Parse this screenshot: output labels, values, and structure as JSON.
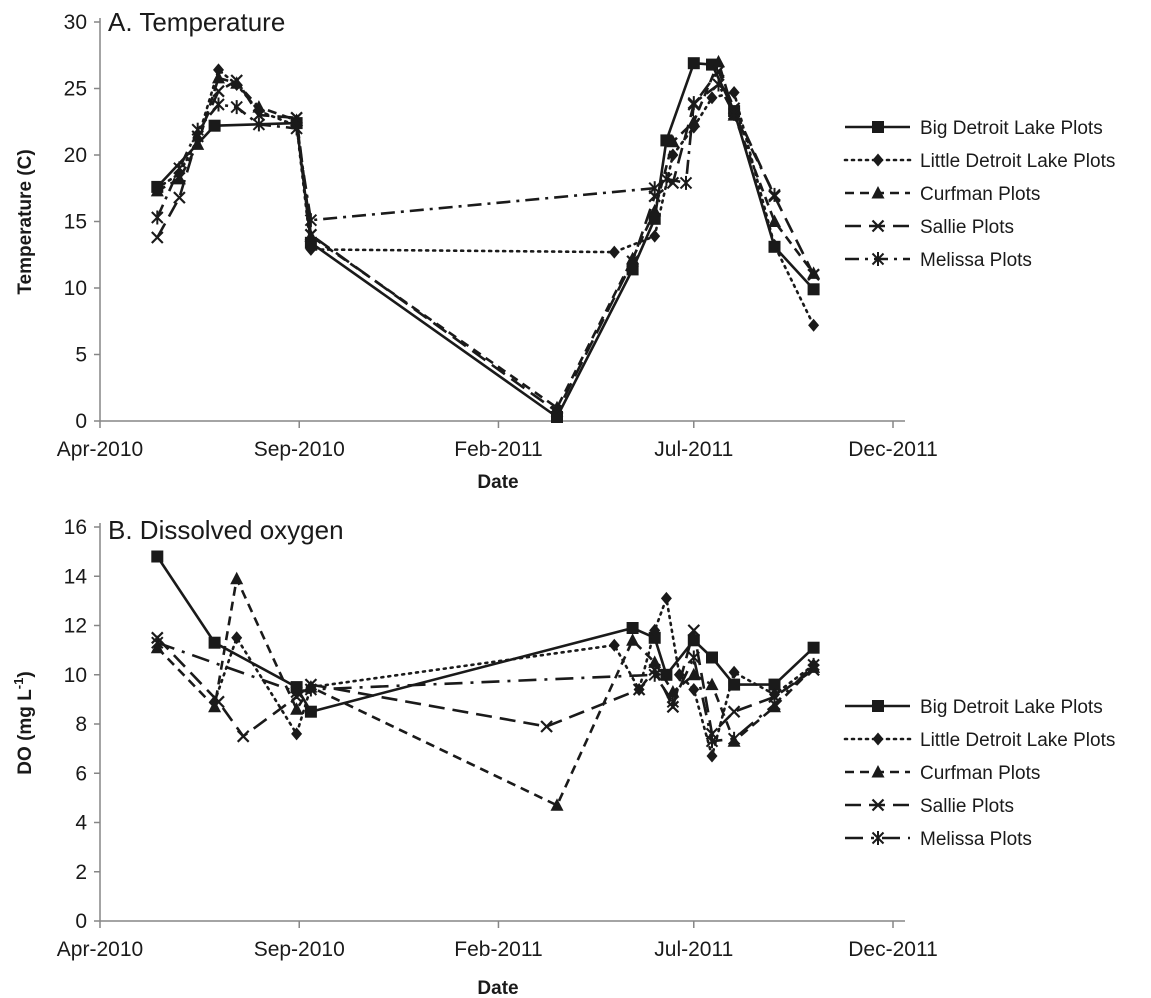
{
  "chart_data": [
    {
      "type": "line",
      "title": "A.  Temperature",
      "xlabel": "Date",
      "ylabel": "Temperature (C)",
      "ylim": [
        0,
        30
      ],
      "yticks": [
        "0",
        "5",
        "10",
        "15",
        "20",
        "25",
        "30"
      ],
      "xlim": [
        "2010-04-01",
        "2011-12-01"
      ],
      "xticks": [
        {
          "date": "2010-04-01",
          "label": "Apr-2010"
        },
        {
          "date": "2010-09-01",
          "label": "Sep-2010"
        },
        {
          "date": "2011-02-01",
          "label": "Feb-2011"
        },
        {
          "date": "2011-07-01",
          "label": "Jul-2011"
        },
        {
          "date": "2011-12-01",
          "label": "Dec-2011"
        }
      ],
      "grid": false,
      "legend_position": "right",
      "series": [
        {
          "name": "Big Detroit Lake Plots",
          "marker": "square",
          "dash": "solid",
          "points": [
            [
              "2010-05-15",
              17.6
            ],
            [
              "2010-06-28",
              22.2
            ],
            [
              "2010-08-30",
              22.4
            ],
            [
              "2010-09-10",
              13.4
            ],
            [
              "2011-03-18",
              0.3
            ],
            [
              "2011-05-15",
              11.4
            ],
            [
              "2011-06-01",
              15.2
            ],
            [
              "2011-06-10",
              21.1
            ],
            [
              "2011-07-01",
              26.9
            ],
            [
              "2011-07-15",
              26.8
            ],
            [
              "2011-08-01",
              23.3
            ],
            [
              "2011-09-01",
              13.1
            ],
            [
              "2011-10-01",
              9.9
            ]
          ]
        },
        {
          "name": "Little Detroit Lake Plots",
          "marker": "diamond",
          "dash": "dotted",
          "points": [
            [
              "2010-05-15",
              17.5
            ],
            [
              "2010-06-01",
              18.6
            ],
            [
              "2010-06-15",
              21.2
            ],
            [
              "2010-07-01",
              26.4
            ],
            [
              "2010-07-15",
              25.3
            ],
            [
              "2010-08-01",
              23.3
            ],
            [
              "2010-08-30",
              22.2
            ],
            [
              "2010-09-10",
              12.9
            ],
            [
              "2011-05-01",
              12.7
            ],
            [
              "2011-06-01",
              13.9
            ],
            [
              "2011-06-15",
              20.0
            ],
            [
              "2011-07-01",
              22.1
            ],
            [
              "2011-07-15",
              24.3
            ],
            [
              "2011-08-01",
              24.7
            ],
            [
              "2011-09-01",
              13.2
            ],
            [
              "2011-10-01",
              7.2
            ]
          ]
        },
        {
          "name": "Curfman Plots",
          "marker": "triangle",
          "dash": "dashed",
          "points": [
            [
              "2010-05-15",
              17.3
            ],
            [
              "2010-06-01",
              18.2
            ],
            [
              "2010-06-15",
              20.8
            ],
            [
              "2010-07-01",
              25.8
            ],
            [
              "2010-07-15",
              25.4
            ],
            [
              "2010-08-01",
              23.6
            ],
            [
              "2010-08-30",
              22.6
            ],
            [
              "2010-09-10",
              13.9
            ],
            [
              "2011-03-18",
              1.0
            ],
            [
              "2011-05-15",
              12.2
            ],
            [
              "2011-06-01",
              15.8
            ],
            [
              "2011-06-15",
              21.0
            ],
            [
              "2011-07-01",
              22.5
            ],
            [
              "2011-07-20",
              27.0
            ],
            [
              "2011-08-01",
              23.0
            ],
            [
              "2011-09-01",
              15.0
            ],
            [
              "2011-10-01",
              11.1
            ]
          ]
        },
        {
          "name": "Sallie Plots",
          "marker": "x",
          "dash": "longdash",
          "points": [
            [
              "2010-05-15",
              13.8
            ],
            [
              "2010-06-01",
              16.8
            ],
            [
              "2010-06-15",
              21.4
            ],
            [
              "2010-07-01",
              24.8
            ],
            [
              "2010-07-15",
              25.6
            ],
            [
              "2010-08-01",
              23.0
            ],
            [
              "2010-08-30",
              22.8
            ],
            [
              "2010-09-10",
              14.0
            ],
            [
              "2011-03-18",
              0.7
            ],
            [
              "2011-05-15",
              12.0
            ],
            [
              "2011-06-01",
              16.9
            ],
            [
              "2011-06-15",
              17.9
            ],
            [
              "2011-07-01",
              23.8
            ],
            [
              "2011-07-20",
              26.3
            ],
            [
              "2011-08-01",
              23.5
            ],
            [
              "2011-09-01",
              16.9
            ],
            [
              "2011-10-01",
              11.0
            ]
          ]
        },
        {
          "name": "Melissa Plots",
          "marker": "asterisk",
          "dash": "dashdot",
          "points": [
            [
              "2010-05-15",
              15.3
            ],
            [
              "2010-06-01",
              19.0
            ],
            [
              "2010-06-15",
              21.9
            ],
            [
              "2010-07-01",
              23.8
            ],
            [
              "2010-07-15",
              23.6
            ],
            [
              "2010-08-01",
              22.3
            ],
            [
              "2010-08-30",
              22.0
            ],
            [
              "2010-09-10",
              15.1
            ],
            [
              "2011-06-01",
              17.5
            ],
            [
              "2011-06-10",
              18.2
            ],
            [
              "2011-06-25",
              17.9
            ],
            [
              "2011-07-01",
              23.9
            ],
            [
              "2011-07-20",
              25.3
            ],
            [
              "2011-08-01",
              23.1
            ],
            [
              "2011-09-01",
              17.0
            ]
          ]
        }
      ]
    },
    {
      "type": "line",
      "title": "B.  Dissolved oxygen",
      "xlabel": "Date",
      "ylabel_main": "DO (mg L",
      "ylabel_sup": "-1",
      "ylabel_close": ")",
      "ylim": [
        0,
        16
      ],
      "yticks": [
        "0",
        "2",
        "4",
        "6",
        "8",
        "10",
        "12",
        "14",
        "16"
      ],
      "xlim": [
        "2010-04-01",
        "2011-12-01"
      ],
      "xticks": [
        {
          "date": "2010-04-01",
          "label": "Apr-2010"
        },
        {
          "date": "2010-09-01",
          "label": "Sep-2010"
        },
        {
          "date": "2011-02-01",
          "label": "Feb-2011"
        },
        {
          "date": "2011-07-01",
          "label": "Jul-2011"
        },
        {
          "date": "2011-12-01",
          "label": "Dec-2011"
        }
      ],
      "grid": false,
      "legend_position": "right",
      "series": [
        {
          "name": "Big Detroit Lake Plots",
          "marker": "square",
          "dash": "solid",
          "points": [
            [
              "2010-05-15",
              14.8
            ],
            [
              "2010-06-28",
              11.3
            ],
            [
              "2010-08-30",
              9.5
            ],
            [
              "2010-09-10",
              8.5
            ],
            [
              "2011-05-15",
              11.9
            ],
            [
              "2011-06-01",
              11.5
            ],
            [
              "2011-06-10",
              10.0
            ],
            [
              "2011-07-01",
              11.4
            ],
            [
              "2011-07-15",
              10.7
            ],
            [
              "2011-08-01",
              9.6
            ],
            [
              "2011-09-01",
              9.6
            ],
            [
              "2011-10-01",
              11.1
            ]
          ]
        },
        {
          "name": "Little Detroit Lake Plots",
          "marker": "diamond",
          "dash": "dotted",
          "points": [
            [
              "2010-06-28",
              8.9
            ],
            [
              "2010-07-15",
              11.5
            ],
            [
              "2010-08-30",
              7.6
            ],
            [
              "2010-09-10",
              9.5
            ],
            [
              "2011-05-01",
              11.2
            ],
            [
              "2011-05-20",
              9.4
            ],
            [
              "2011-06-01",
              11.8
            ],
            [
              "2011-06-10",
              13.1
            ],
            [
              "2011-06-20",
              10.0
            ],
            [
              "2011-07-01",
              9.4
            ],
            [
              "2011-07-15",
              6.7
            ],
            [
              "2011-08-01",
              10.1
            ],
            [
              "2011-09-01",
              9.2
            ],
            [
              "2011-10-01",
              10.4
            ]
          ]
        },
        {
          "name": "Curfman Plots",
          "marker": "triangle",
          "dash": "dashed",
          "points": [
            [
              "2010-05-15",
              11.1
            ],
            [
              "2010-06-28",
              8.7
            ],
            [
              "2010-07-15",
              13.9
            ],
            [
              "2010-08-30",
              8.6
            ],
            [
              "2010-09-10",
              9.5
            ],
            [
              "2011-03-18",
              4.7
            ],
            [
              "2011-05-15",
              11.4
            ],
            [
              "2011-06-01",
              10.5
            ],
            [
              "2011-06-15",
              9.3
            ],
            [
              "2011-07-01",
              10.0
            ],
            [
              "2011-07-15",
              9.6
            ],
            [
              "2011-08-01",
              7.3
            ],
            [
              "2011-09-01",
              8.7
            ],
            [
              "2011-10-01",
              10.3
            ]
          ]
        },
        {
          "name": "Sallie Plots",
          "marker": "x",
          "dash": "longdash",
          "points": [
            [
              "2010-05-15",
              11.5
            ],
            [
              "2010-07-01",
              8.9
            ],
            [
              "2010-07-20",
              7.5
            ],
            [
              "2010-08-30",
              9.1
            ],
            [
              "2010-09-10",
              9.6
            ],
            [
              "2011-03-10",
              7.9
            ],
            [
              "2011-05-20",
              9.4
            ],
            [
              "2011-06-01",
              10.2
            ],
            [
              "2011-06-15",
              8.7
            ],
            [
              "2011-07-01",
              11.8
            ],
            [
              "2011-07-15",
              7.6
            ],
            [
              "2011-08-01",
              8.5
            ],
            [
              "2011-09-01",
              9.1
            ],
            [
              "2011-10-01",
              10.2
            ]
          ]
        },
        {
          "name": "Melissa Plots",
          "marker": "asterisk",
          "dash": "longdashdot",
          "points": [
            [
              "2010-05-15",
              11.3
            ],
            [
              "2010-08-30",
              9.3
            ],
            [
              "2010-09-10",
              9.4
            ],
            [
              "2011-06-01",
              10.0
            ],
            [
              "2011-06-15",
              8.9
            ],
            [
              "2011-07-01",
              10.7
            ],
            [
              "2011-07-15",
              7.3
            ],
            [
              "2011-08-01",
              7.4
            ],
            [
              "2011-09-01",
              8.8
            ],
            [
              "2011-10-01",
              10.4
            ]
          ]
        }
      ]
    }
  ]
}
